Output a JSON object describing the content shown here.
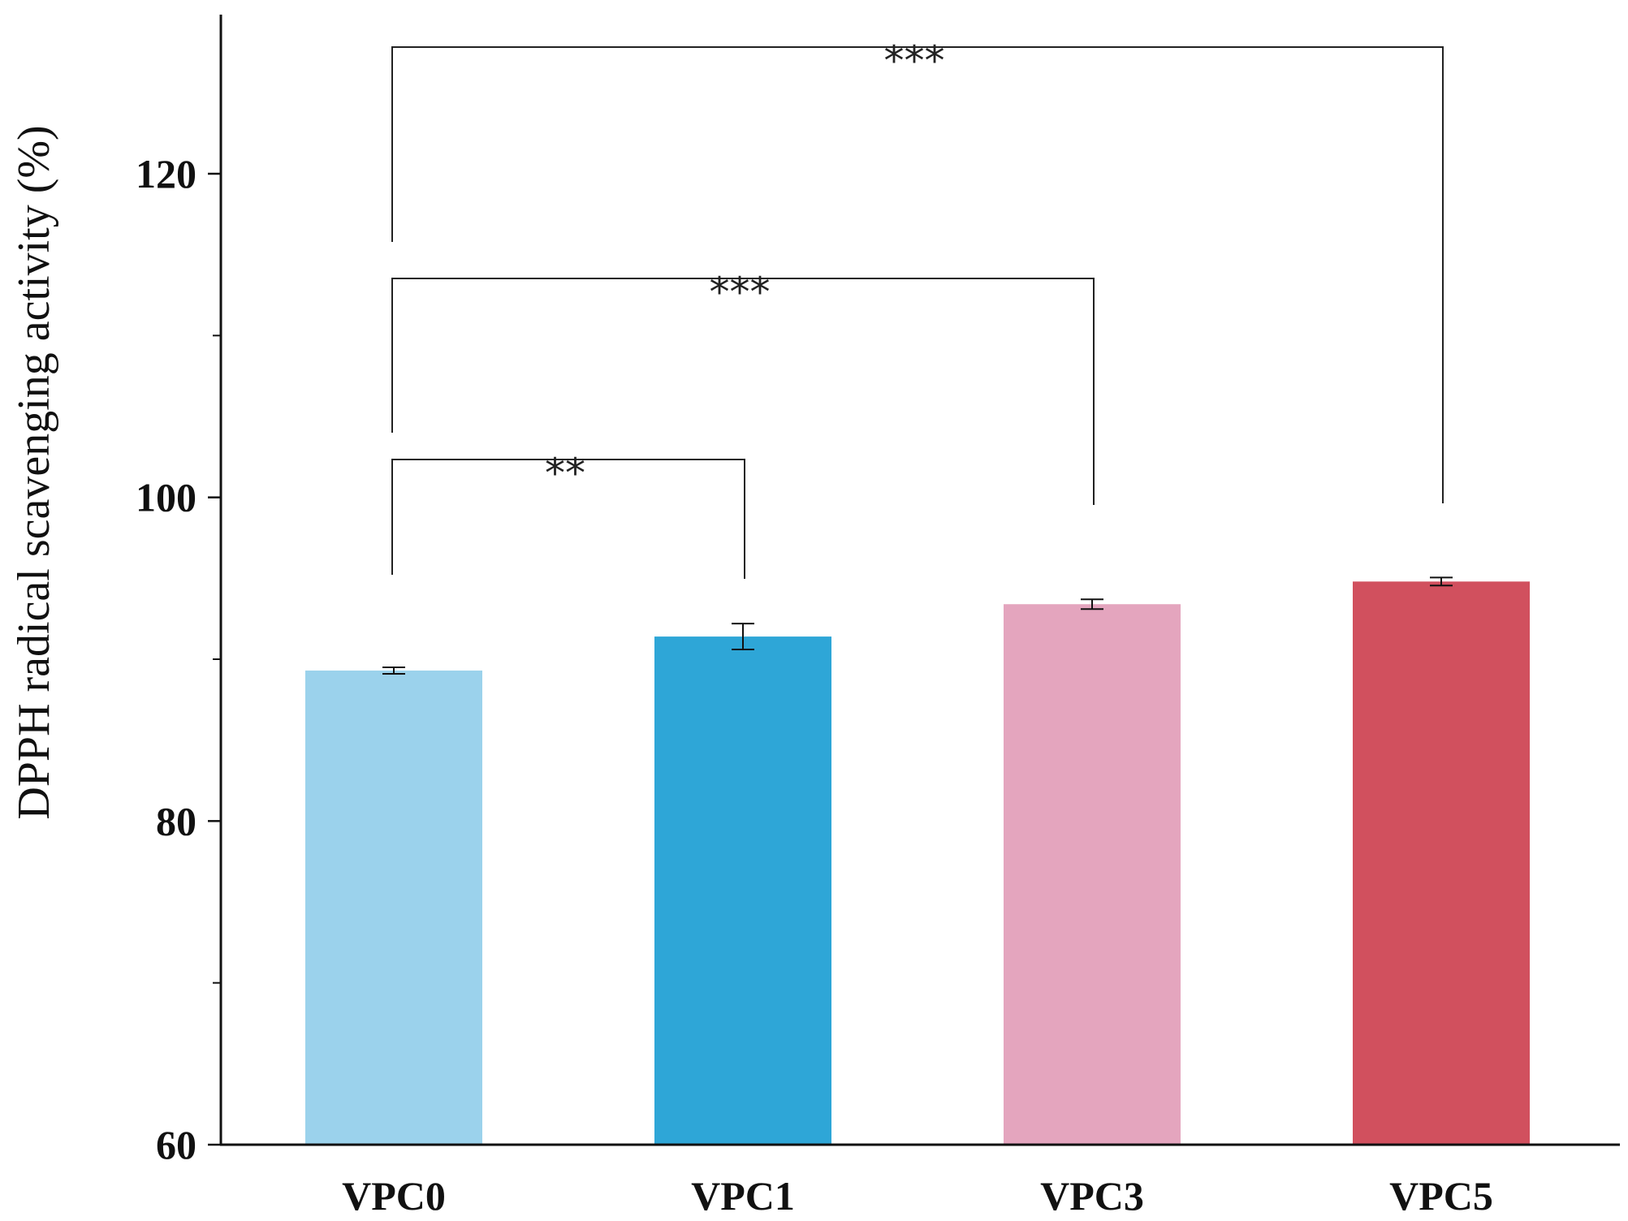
{
  "chart_data": {
    "type": "bar",
    "ylabel": "DPPH radical scavenging activity (%)",
    "xlabel": "",
    "ylim": [
      60,
      130
    ],
    "yticks": [
      60,
      80,
      100,
      120
    ],
    "yticks_minor": [
      70,
      90,
      110
    ],
    "grid": false,
    "categories": [
      "VPC0",
      "VPC1",
      "VPC3",
      "VPC5"
    ],
    "values": [
      89.3,
      91.4,
      93.4,
      94.8
    ],
    "errors": [
      0.2,
      0.8,
      0.3,
      0.25
    ],
    "colors": [
      "#9bd2ec",
      "#2ea6d7",
      "#e4a5be",
      "#d1505e"
    ],
    "significance": [
      {
        "from": "VPC0",
        "to": "VPC1",
        "label": "**"
      },
      {
        "from": "VPC0",
        "to": "VPC3",
        "label": "***"
      },
      {
        "from": "VPC0",
        "to": "VPC5",
        "label": "***"
      }
    ]
  }
}
